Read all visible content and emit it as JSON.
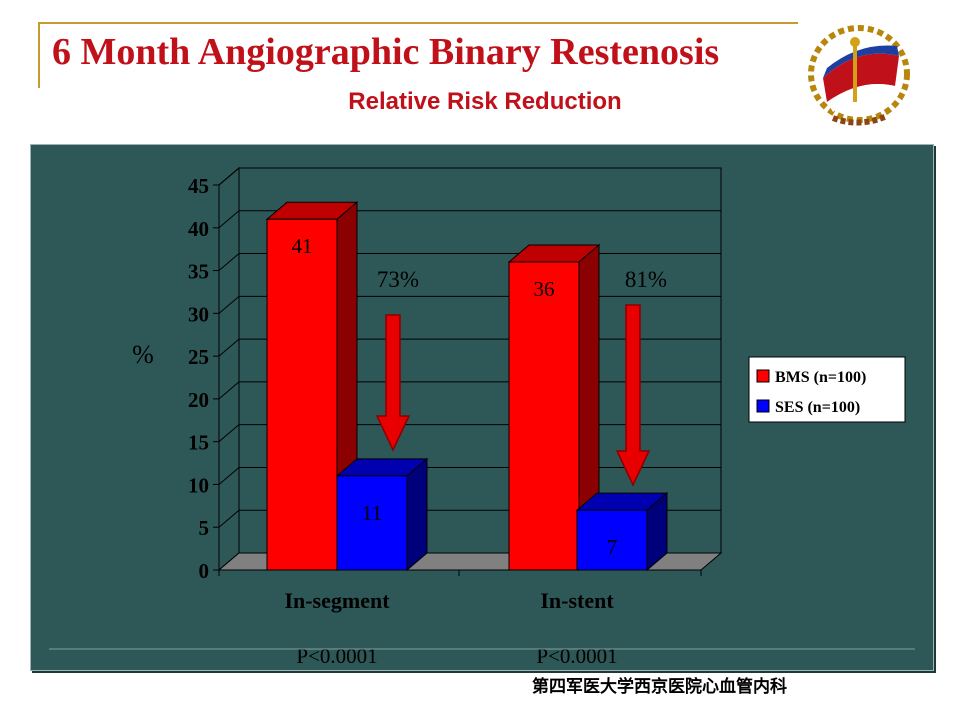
{
  "title": "6 Month Angiographic Binary Restenosis",
  "subtitle": "Relative Risk Reduction",
  "footer": "第四军医大学西京医院心血管内科",
  "colors": {
    "bms": "#ff0000",
    "ses": "#0000ff",
    "title": "#c0111b",
    "panel": "#2e5757",
    "arrow": "#e80000"
  },
  "chart_data": {
    "type": "bar",
    "categories": [
      "In-segment",
      "In-stent"
    ],
    "series": [
      {
        "name": "BMS (n=100)",
        "values": [
          41,
          36
        ]
      },
      {
        "name": "SES (n=100)",
        "values": [
          11,
          7
        ]
      }
    ],
    "data_labels": [
      [
        "41",
        "36"
      ],
      [
        "11",
        "7"
      ]
    ],
    "ylabel": "%",
    "ylim": [
      0,
      45
    ],
    "yticks": [
      0,
      5,
      10,
      15,
      20,
      25,
      30,
      35,
      40,
      45
    ],
    "grid": true,
    "legend_position": "right",
    "annotations": [
      "73%",
      "81%"
    ],
    "p_values": [
      "P<0.0001",
      "P<0.0001"
    ]
  }
}
